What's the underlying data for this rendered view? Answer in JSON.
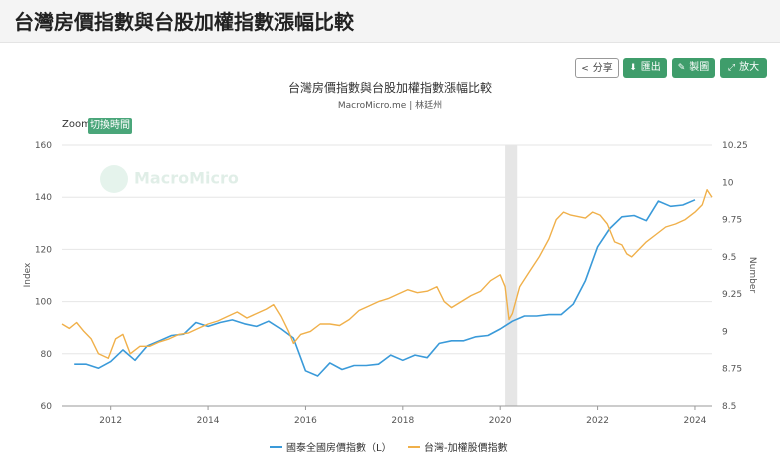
{
  "page": {
    "title": "台灣房價指數與台股加權指數漲幅比較"
  },
  "toolbar": {
    "share_label": "分享",
    "export_label": "匯出",
    "draw_label": "製圖",
    "zoom_label": "放大"
  },
  "zoom_control": {
    "label": "Zoom",
    "button": "切換時間"
  },
  "watermark": "MacroMicro",
  "colors": {
    "house": "#3a9ad9",
    "stock": "#f0b04a",
    "recession": "#e6e6e6",
    "button_green": "#3f9d6b"
  },
  "chart_data": {
    "type": "line",
    "title": "台灣房價指數與台股加權指數漲幅比較",
    "subtitle": "MacroMicro.me | 林廷州",
    "ylabel_left": "Index",
    "ylabel_right": "Number",
    "ylim_left": [
      60,
      160
    ],
    "ylim_right": [
      8.5,
      10.25
    ],
    "xlim": [
      2011.0,
      2024.35
    ],
    "x_ticks": [
      "2012",
      "2014",
      "2016",
      "2018",
      "2020",
      "2022",
      "2024"
    ],
    "y_ticks_left": [
      "60",
      "80",
      "100",
      "120",
      "140",
      "160"
    ],
    "y_ticks_right": [
      "8.5",
      "8.75",
      "9",
      "9.25",
      "9.5",
      "9.75",
      "10",
      "10.25"
    ],
    "shaded_band": [
      2020.1,
      2020.35
    ],
    "legend": [
      "國泰全國房價指數（L）",
      "台灣-加權股價指數"
    ],
    "series": [
      {
        "name": "國泰全國房價指數（L）",
        "axis": "left",
        "x": [
          2011.25,
          2011.5,
          2011.75,
          2012.0,
          2012.25,
          2012.5,
          2012.75,
          2013.0,
          2013.25,
          2013.5,
          2013.75,
          2014.0,
          2014.25,
          2014.5,
          2014.75,
          2015.0,
          2015.25,
          2015.5,
          2015.75,
          2016.0,
          2016.25,
          2016.5,
          2016.75,
          2017.0,
          2017.25,
          2017.5,
          2017.75,
          2018.0,
          2018.25,
          2018.5,
          2018.75,
          2019.0,
          2019.25,
          2019.5,
          2019.75,
          2020.0,
          2020.25,
          2020.5,
          2020.75,
          2021.0,
          2021.25,
          2021.5,
          2021.75,
          2022.0,
          2022.25,
          2022.5,
          2022.75,
          2023.0,
          2023.25,
          2023.5,
          2023.75,
          2024.0
        ],
        "y": [
          76,
          76,
          74.5,
          77,
          81.5,
          77.5,
          83,
          85,
          87,
          87.5,
          92,
          90.5,
          92,
          93,
          91.5,
          90.5,
          92.5,
          89.5,
          86,
          73.5,
          71.5,
          76.5,
          74,
          75.5,
          75.5,
          76,
          79.5,
          77.5,
          79.5,
          78.5,
          84,
          85,
          85,
          86.5,
          87,
          89.5,
          92.5,
          94.5,
          94.5,
          95,
          95,
          99,
          108,
          121,
          128,
          132.5,
          133,
          131,
          138.5,
          136.5,
          137,
          139
        ]
      },
      {
        "name": "台灣-加權股價指數",
        "axis": "right",
        "x": [
          2011.0,
          2011.15,
          2011.3,
          2011.45,
          2011.6,
          2011.75,
          2011.95,
          2012.1,
          2012.25,
          2012.4,
          2012.6,
          2012.8,
          2013.0,
          2013.2,
          2013.4,
          2013.6,
          2013.8,
          2014.0,
          2014.2,
          2014.4,
          2014.6,
          2014.8,
          2015.0,
          2015.2,
          2015.35,
          2015.5,
          2015.65,
          2015.75,
          2015.9,
          2016.1,
          2016.3,
          2016.5,
          2016.7,
          2016.9,
          2017.1,
          2017.3,
          2017.5,
          2017.7,
          2017.9,
          2018.1,
          2018.3,
          2018.5,
          2018.7,
          2018.85,
          2019.0,
          2019.2,
          2019.4,
          2019.6,
          2019.8,
          2020.0,
          2020.1,
          2020.18,
          2020.25,
          2020.4,
          2020.6,
          2020.8,
          2021.0,
          2021.15,
          2021.3,
          2021.45,
          2021.6,
          2021.75,
          2021.9,
          2022.05,
          2022.2,
          2022.35,
          2022.5,
          2022.6,
          2022.7,
          2022.85,
          2023.0,
          2023.2,
          2023.4,
          2023.6,
          2023.8,
          2024.0,
          2024.15,
          2024.25,
          2024.35
        ],
        "y": [
          9.05,
          9.02,
          9.06,
          9.0,
          8.95,
          8.85,
          8.82,
          8.95,
          8.98,
          8.85,
          8.9,
          8.9,
          8.93,
          8.95,
          8.98,
          8.99,
          9.02,
          9.05,
          9.07,
          9.1,
          9.13,
          9.09,
          9.12,
          9.15,
          9.18,
          9.1,
          9.0,
          8.92,
          8.98,
          9.0,
          9.05,
          9.05,
          9.04,
          9.08,
          9.14,
          9.17,
          9.2,
          9.22,
          9.25,
          9.28,
          9.26,
          9.27,
          9.3,
          9.2,
          9.16,
          9.2,
          9.24,
          9.27,
          9.34,
          9.38,
          9.3,
          9.08,
          9.12,
          9.3,
          9.4,
          9.5,
          9.62,
          9.75,
          9.8,
          9.78,
          9.77,
          9.76,
          9.8,
          9.78,
          9.72,
          9.6,
          9.58,
          9.52,
          9.5,
          9.55,
          9.6,
          9.65,
          9.7,
          9.72,
          9.75,
          9.8,
          9.85,
          9.95,
          9.9
        ]
      }
    ]
  }
}
